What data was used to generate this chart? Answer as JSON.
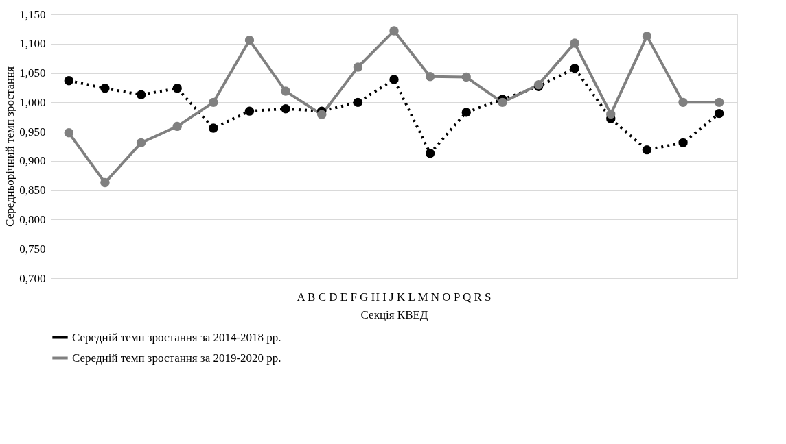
{
  "chart_data": {
    "type": "line",
    "xlabel": "Секція КВЕД",
    "ylabel": "Середньорічний темп зростання",
    "annotations": [
      "A B C D E F G H I J K L M N O P Q R S"
    ],
    "categories": [
      null,
      null,
      null,
      null,
      null,
      null,
      null,
      null,
      null,
      null,
      null,
      null,
      null,
      null,
      null,
      null,
      null,
      null,
      null
    ],
    "series": [
      {
        "name": "Середній темп зростання за 2014-2018 рр.",
        "color": "#000000",
        "line_style": "dotted",
        "values": [
          1.037,
          1.024,
          1.013,
          1.024,
          0.956,
          0.985,
          0.989,
          0.985,
          1.0,
          1.039,
          0.913,
          0.983,
          1.005,
          1.027,
          1.058,
          0.972,
          0.919,
          0.931,
          0.981
        ]
      },
      {
        "name": "Середній темп зростання за 2019-2020 рр.",
        "color": "#808080",
        "line_style": "solid",
        "values": [
          0.948,
          0.863,
          0.931,
          0.959,
          1.0,
          1.106,
          1.019,
          0.979,
          1.06,
          1.122,
          1.044,
          1.043,
          1.0,
          1.03,
          1.101,
          0.98,
          1.113,
          1.0,
          1.0
        ]
      }
    ],
    "ylim": [
      0.7,
      1.15
    ],
    "yticks": [
      {
        "value": 0.7,
        "label": "0,700"
      },
      {
        "value": 0.75,
        "label": "0,750"
      },
      {
        "value": 0.8,
        "label": "0,800"
      },
      {
        "value": 0.85,
        "label": "0,850"
      },
      {
        "value": 0.9,
        "label": "0,900"
      },
      {
        "value": 0.95,
        "label": "0,950"
      },
      {
        "value": 1.0,
        "label": "1,000"
      },
      {
        "value": 1.05,
        "label": "1,050"
      },
      {
        "value": 1.1,
        "label": "1,100"
      },
      {
        "value": 1.15,
        "label": "1,150"
      }
    ],
    "grid": "y",
    "legend": "bottom",
    "marker": "circle"
  }
}
